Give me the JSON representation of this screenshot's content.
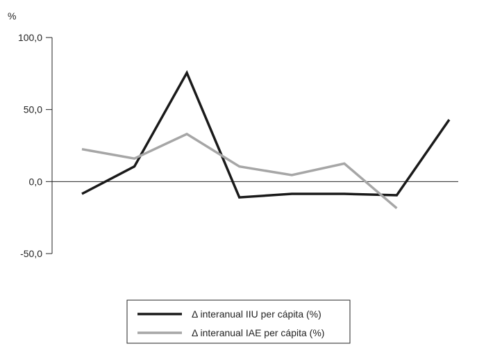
{
  "chart_data": {
    "type": "line",
    "title": "",
    "ylabel": "%",
    "xlabel": "",
    "ylim": [
      -50,
      100
    ],
    "yticks": [
      {
        "value": 100,
        "label": "100,0"
      },
      {
        "value": 50,
        "label": "50,0"
      },
      {
        "value": 0,
        "label": "0,0"
      },
      {
        "value": -50,
        "label": "-50,0"
      }
    ],
    "x": [
      1,
      2,
      3,
      4,
      5,
      6,
      7,
      8
    ],
    "grid": false,
    "legend_position": "bottom",
    "series": [
      {
        "name": "Δ interanual IIU per cápita (%)",
        "color": "#1a1a1a",
        "values": [
          -8.5,
          10.5,
          75.5,
          -11,
          -8.5,
          -8.5,
          -9.5,
          43
        ]
      },
      {
        "name": "Δ interanual IAE per cápita (%)",
        "color": "#a6a6a6",
        "values": [
          22.5,
          16,
          33,
          10.5,
          4.5,
          12.5,
          -18.5,
          null
        ]
      }
    ]
  }
}
